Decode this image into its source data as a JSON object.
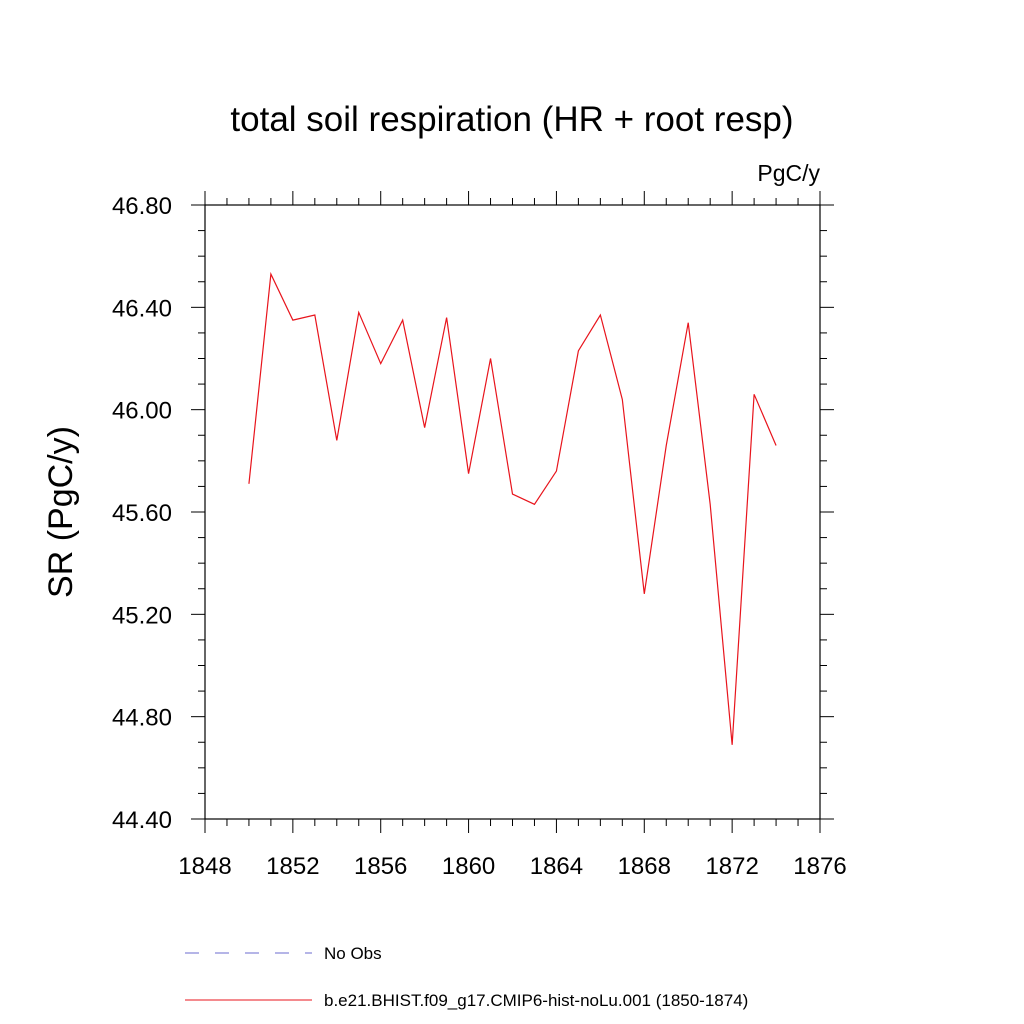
{
  "chart_data": {
    "type": "line",
    "title": "total soil respiration (HR + root resp)",
    "units": "PgC/y",
    "ylabel": "SR  (PgC/y)",
    "xlabel": "",
    "xlim": [
      1848,
      1876
    ],
    "ylim": [
      44.4,
      46.8
    ],
    "x_ticks": [
      "1848",
      "1852",
      "1856",
      "1860",
      "1864",
      "1868",
      "1872",
      "1876"
    ],
    "y_ticks": [
      "44.80",
      "45.20",
      "45.60",
      "46.00",
      "46.40",
      "46.80",
      "44.40"
    ],
    "grid": false,
    "legend_position": "bottom",
    "legend": [
      {
        "label": "No Obs",
        "color": "#6b6bcf",
        "style": "dashed"
      },
      {
        "label": "b.e21.BHIST.f09_g17.CMIP6-hist-noLu.001 (1850-1874)",
        "color": "#e8141c",
        "style": "solid"
      }
    ],
    "series": [
      {
        "name": "b.e21.BHIST.f09_g17.CMIP6-hist-noLu.001 (1850-1874)",
        "color": "#e8141c",
        "x": [
          1850,
          1851,
          1852,
          1853,
          1854,
          1855,
          1856,
          1857,
          1858,
          1859,
          1860,
          1861,
          1862,
          1863,
          1864,
          1865,
          1866,
          1867,
          1868,
          1869,
          1870,
          1871,
          1872,
          1873,
          1874
        ],
        "values": [
          45.71,
          46.53,
          46.35,
          46.37,
          45.88,
          46.38,
          46.18,
          46.35,
          45.93,
          46.36,
          45.75,
          46.2,
          45.67,
          45.63,
          45.76,
          46.23,
          46.37,
          46.04,
          45.28,
          45.86,
          46.34,
          45.63,
          44.69,
          46.06,
          45.86
        ]
      }
    ]
  }
}
